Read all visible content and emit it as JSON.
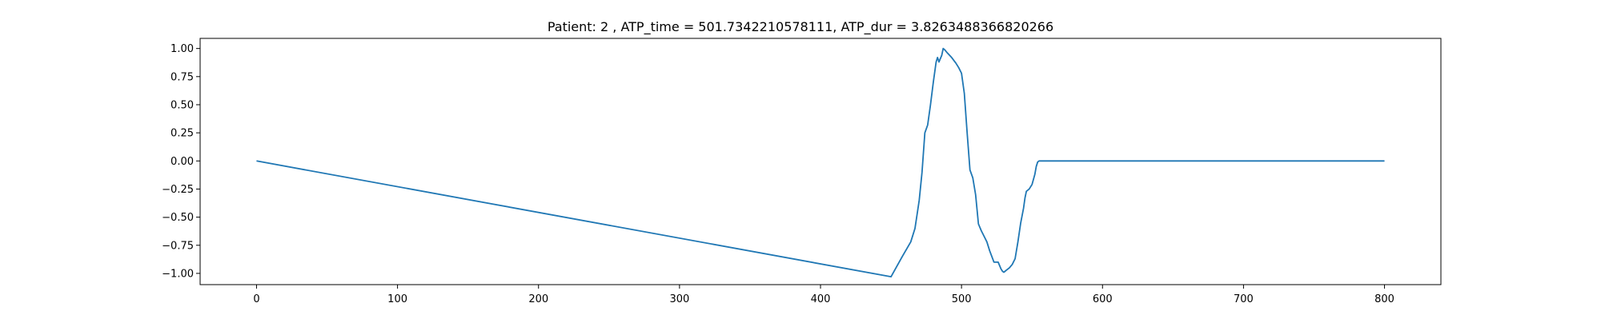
{
  "chart_data": {
    "type": "line",
    "title": "Patient: 2 , ATP_time = 501.7342210578111, ATP_dur = 3.8263488366820266",
    "xlabel": "",
    "ylabel": "",
    "xlim": [
      -40,
      840
    ],
    "ylim": [
      -1.1,
      1.09
    ],
    "grid": false,
    "x_ticks": [
      0,
      100,
      200,
      300,
      400,
      500,
      600,
      700,
      800
    ],
    "x_tick_labels": [
      "0",
      "100",
      "200",
      "300",
      "400",
      "500",
      "600",
      "700",
      "800"
    ],
    "y_ticks": [
      1.0,
      0.75,
      0.5,
      0.25,
      0.0,
      -0.25,
      -0.5,
      -0.75,
      -1.0
    ],
    "y_tick_labels": [
      "1.00",
      "0.75",
      "0.50",
      "0.25",
      "0.00",
      "−0.25",
      "−0.50",
      "−0.75",
      "−1.00"
    ],
    "series": [
      {
        "color": "#1f77b4",
        "x": [
          0,
          450,
          458,
          464,
          467,
          470,
          472,
          474,
          476,
          478,
          480,
          482,
          483,
          484,
          486,
          487,
          488,
          490,
          493,
          496,
          498,
          500,
          502,
          504,
          506,
          508,
          510,
          512,
          514,
          516,
          518,
          520,
          523,
          526,
          528,
          529,
          530,
          531,
          532,
          534,
          536,
          538,
          540,
          542,
          544,
          545,
          546,
          548,
          550,
          552,
          553,
          554,
          555,
          556,
          558,
          560,
          600,
          700,
          800
        ],
        "y": [
          0.0,
          -1.03,
          -0.85,
          -0.72,
          -0.6,
          -0.35,
          -0.1,
          0.25,
          0.32,
          0.5,
          0.7,
          0.88,
          0.92,
          0.88,
          0.94,
          1.0,
          0.99,
          0.96,
          0.92,
          0.87,
          0.83,
          0.78,
          0.6,
          0.25,
          -0.08,
          -0.15,
          -0.3,
          -0.56,
          -0.62,
          -0.67,
          -0.72,
          -0.8,
          -0.9,
          -0.9,
          -0.96,
          -0.98,
          -0.99,
          -0.98,
          -0.97,
          -0.95,
          -0.92,
          -0.87,
          -0.72,
          -0.55,
          -0.42,
          -0.33,
          -0.27,
          -0.25,
          -0.21,
          -0.12,
          -0.05,
          -0.01,
          0.0,
          0.0,
          0.0,
          0.0,
          0.0,
          0.0,
          0.0
        ]
      }
    ]
  }
}
